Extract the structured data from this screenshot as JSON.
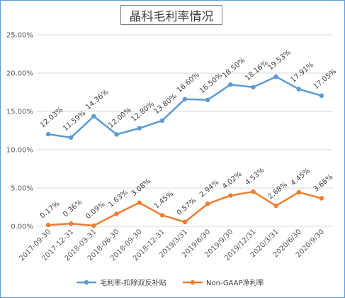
{
  "chart_data": {
    "type": "line",
    "title": "晶科毛利率情况",
    "categories": [
      "2017-09-30",
      "2017-12-31",
      "2018-03-31",
      "2018-06-30",
      "2018-09-30",
      "2018-12-31",
      "2019/3/31",
      "2019/6/30",
      "2019/9/30",
      "2019/12/31",
      "2020/3/31",
      "2020/6/30",
      "2020/9/30"
    ],
    "y_ticks": [
      "0.00%",
      "5.00%",
      "10.00%",
      "15.00%",
      "20.00%",
      "25.00%"
    ],
    "ylim": [
      0,
      25
    ],
    "grid": true,
    "legend_position": "bottom",
    "series": [
      {
        "name": "毛利率-扣除双反补贴",
        "color": "#5b9bd5",
        "values": [
          12.03,
          11.59,
          14.36,
          12.0,
          12.8,
          13.8,
          16.6,
          16.5,
          18.5,
          18.16,
          19.53,
          17.91,
          17.05
        ],
        "labels": [
          "12.03%",
          "11.59%",
          "14.36%",
          "12.00%",
          "12.80%",
          "13.80%",
          "16.60%",
          "16.50%",
          "18.50%",
          "18.16%",
          "19.53%",
          "17.91%",
          "17.05%"
        ]
      },
      {
        "name": "Non-GAAP净利率",
        "color": "#ed7d31",
        "values": [
          0.17,
          0.36,
          0.09,
          1.63,
          3.08,
          1.45,
          0.57,
          2.94,
          4.02,
          4.53,
          2.68,
          4.45,
          3.66
        ],
        "labels": [
          "0.17%",
          "0.36%",
          "0.09%",
          "1.63%",
          "3.08%",
          "1.45%",
          "0.57%",
          "2.94%",
          "4.02%",
          "4.53%",
          "2.68%",
          "4.45%",
          "3.66%"
        ]
      }
    ]
  }
}
